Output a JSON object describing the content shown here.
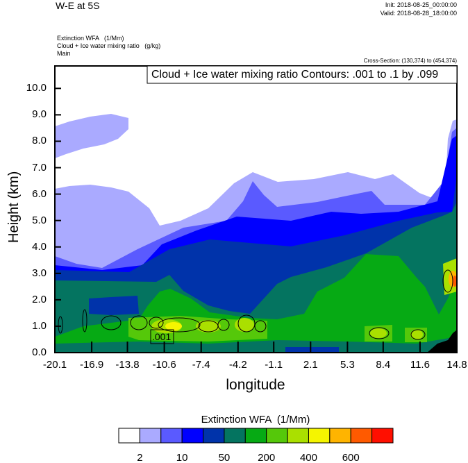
{
  "header": {
    "title": "W-E at 5S",
    "init": "Init: 2018-08-25_00:00:00",
    "valid": "Valid: 2018-08-28_18:00:00",
    "field_lines": [
      "Extinction WFA   (1/Mm)",
      "Cloud + Ice water mixing ratio   (g/kg)",
      "Main"
    ],
    "cross_section": "Cross-Section: (130,374) to (454,374)"
  },
  "chart_data": {
    "type": "heatmap",
    "subtype": "filled contour cross-section with line contour overlay",
    "title": "W-E at 5S",
    "xlabel": "longitude",
    "ylabel": "Height (km)",
    "xlim": [
      -20.1,
      14.8
    ],
    "ylim": [
      0.0,
      10.85
    ],
    "x_ticks": [
      "-20.1",
      "-16.9",
      "-13.8",
      "-10.6",
      "-7.4",
      "-4.2",
      "-1.1",
      "2.1",
      "5.3",
      "8.4",
      "11.6",
      "14.8"
    ],
    "y_ticks": [
      "0.0",
      "1.0",
      "2.0",
      "3.0",
      "4.0",
      "5.0",
      "6.0",
      "7.0",
      "8.0",
      "9.0",
      "10.0"
    ],
    "grid": false,
    "overlay_legend": "Cloud + Ice water mixing ratio Contours: .001 to .1 by .099",
    "overlay_legend_placement": "top-right",
    "contour_label": ".001",
    "colorbar": {
      "title": "Extinction WFA  (1/Mm)",
      "labels": [
        "2",
        "10",
        "50",
        "200",
        "400",
        "600"
      ],
      "colors": [
        "#ffffff",
        "#aaaaff",
        "#5a5aff",
        "#0000ff",
        "#0033aa",
        "#047460",
        "#06aa14",
        "#55c80a",
        "#aae000",
        "#f5f500",
        "#ffb400",
        "#ff5a00",
        "#ff0f00"
      ],
      "placement": "bottom"
    },
    "terrain_color": "#000000"
  }
}
